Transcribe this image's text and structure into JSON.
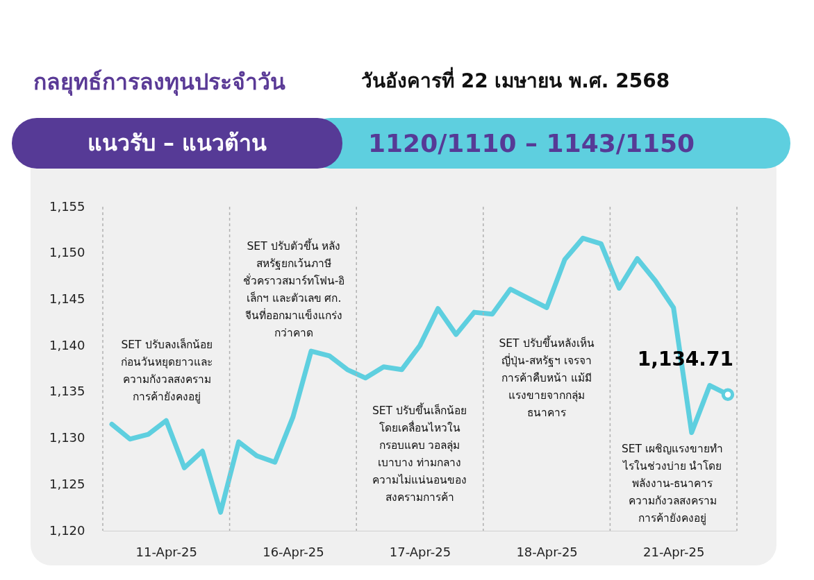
{
  "chart_data": {
    "type": "line",
    "title": "กลยุทธ์การลงทุนประจำวัน",
    "subtitle": "วันอังคารที่ 22 เมษายน พ.ศ. 2568",
    "categories": [
      null,
      null,
      null,
      "11-Apr-25",
      null,
      null,
      null,
      null,
      null,
      null,
      "16-Apr-25",
      null,
      null,
      null,
      null,
      null,
      null,
      "17-Apr-25",
      null,
      null,
      null,
      null,
      null,
      null,
      "18-Apr-25",
      null,
      null,
      null,
      null,
      null,
      null,
      "21-Apr-25",
      null,
      null,
      null
    ],
    "series": [
      {
        "color": "#5ecfdf",
        "values": [
          1131.5,
          1129.9,
          1130.4,
          1131.9,
          1126.8,
          1128.6,
          1122.0,
          1129.6,
          1128.1,
          1127.4,
          1132.3,
          1139.4,
          1138.9,
          1137.4,
          1136.5,
          1137.7,
          1137.4,
          1140.0,
          1144.0,
          1141.2,
          1143.6,
          1143.4,
          1146.1,
          1145.1,
          1144.1,
          1149.3,
          1151.6,
          1151.0,
          1146.2,
          1149.4,
          1147.0,
          1144.1,
          1130.6,
          1135.7,
          1134.71
        ],
        "value_labels": [
          null,
          null,
          null,
          null,
          null,
          null,
          null,
          null,
          null,
          null,
          null,
          null,
          null,
          null,
          null,
          null,
          null,
          null,
          null,
          null,
          null,
          null,
          null,
          null,
          null,
          null,
          null,
          null,
          null,
          null,
          null,
          null,
          null,
          null,
          "1,134.71"
        ]
      }
    ],
    "ylim": [
      1120,
      1155
    ],
    "yticks": [
      {
        "value": 1120,
        "label": "1,120"
      },
      {
        "value": 1125,
        "label": "1,125"
      },
      {
        "value": 1130,
        "label": "1,130"
      },
      {
        "value": 1135,
        "label": "1,135"
      },
      {
        "value": 1140,
        "label": "1,140"
      },
      {
        "value": 1145,
        "label": "1,145"
      },
      {
        "value": 1150,
        "label": "1,150"
      },
      {
        "value": 1155,
        "label": "1,155"
      }
    ],
    "grid": false,
    "annotations": [
      "แนวรับ – แนวต้าน",
      "1120/1110 – 1143/1150",
      "SET ปรับลงเล็กน้อย\nก่อนวันหยุดยาวและ\nความกังวลสงคราม\nการค้ายังคงอยู่",
      "SET ปรับตัวขึ้น หลัง\nสหรัฐยกเว้นภาษี\nชั่วคราวสมาร์ทโฟน-อิ\nเล็กฯ และตัวเลข ศก.\nจีนที่ออกมาแข็งแกร่ง\nกว่าคาด",
      "SET ปรับขึ้นเล็กน้อย\nโดยเคลื่อนไหวใน\nกรอบแคบ วอลลุ่ม\nเบาบาง ท่ามกลาง\nความไม่แน่นอนของ\nสงครามการค้า",
      "SET ปรับขึ้นหลังเห็น\nญี่ปุ่น-สหรัฐฯ เจรจา\nการค้าคืบหน้า แม้มี\nแรงขายจากกลุ่ม\nธนาคาร",
      "SET เผชิญแรงขายทำ\nไรในช่วงบ่าย นำโดย\nพลังงาน-ธนาคาร\nความกังวลสงคราม\nการค้ายังคงอยู่"
    ]
  }
}
